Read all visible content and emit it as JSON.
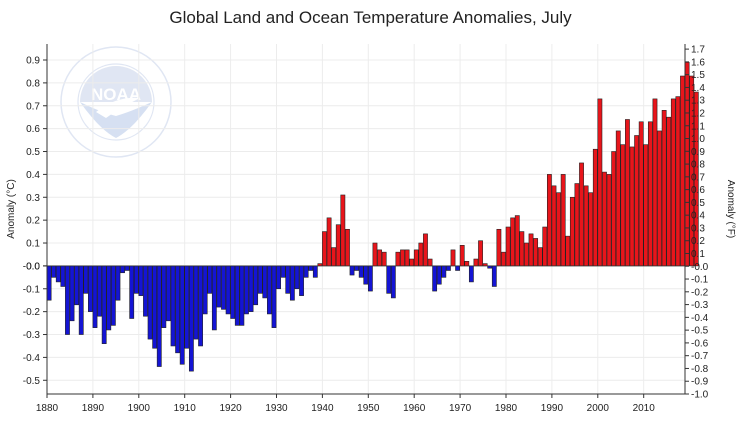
{
  "chart_data": {
    "type": "bar",
    "title": "Global Land and Ocean Temperature Anomalies, July",
    "ylabel_left": "Anomaly (°C)",
    "ylabel_right": "Anomaly (°F)",
    "xlim": [
      1880,
      2019
    ],
    "ylim_c": [
      -0.56,
      0.97
    ],
    "ylim_f": [
      -1.0,
      1.74
    ],
    "x_ticks": [
      1880,
      1890,
      1900,
      1910,
      1920,
      1930,
      1940,
      1950,
      1960,
      1970,
      1980,
      1990,
      2000,
      2010
    ],
    "y_ticks_c": [
      "0.9",
      "0.8",
      "0.7",
      "0.6",
      "0.5",
      "0.4",
      "0.3",
      "0.2",
      "0.1",
      "0.0",
      "-0.0",
      "-0.1",
      "-0.2",
      "-0.3",
      "-0.4",
      "-0.5"
    ],
    "y_ticks_c_values": [
      0.9,
      0.8,
      0.7,
      0.6,
      0.5,
      0.4,
      0.3,
      0.2,
      0.1,
      0.0,
      -0.0,
      -0.1,
      -0.2,
      -0.3,
      -0.4,
      -0.5
    ],
    "y_ticks_f": [
      "1.7",
      "1.6",
      "1.5",
      "1.4",
      "1.3",
      "1.2",
      "1.1",
      "1.0",
      "0.9",
      "0.8",
      "0.7",
      "0.6",
      "0.5",
      "0.4",
      "0.3",
      "0.2",
      "0.1",
      "-0.0",
      "-0.1",
      "-0.2",
      "-0.3",
      "-0.4",
      "-0.5",
      "-0.6",
      "-0.7",
      "-0.8",
      "-0.9",
      "-1.0"
    ],
    "y_ticks_f_values": [
      1.7,
      1.6,
      1.5,
      1.4,
      1.3,
      1.2,
      1.1,
      1.0,
      0.9,
      0.8,
      0.7,
      0.6,
      0.5,
      0.4,
      0.3,
      0.2,
      0.1,
      0.0,
      -0.1,
      -0.2,
      -0.3,
      -0.4,
      -0.5,
      -0.6,
      -0.7,
      -0.8,
      -0.9,
      -1.0
    ],
    "positive_color": "#e8151b",
    "negative_color": "#1414d4",
    "grid": true,
    "start_year": 1880,
    "values": [
      -0.15,
      -0.05,
      -0.07,
      -0.09,
      -0.3,
      -0.24,
      -0.17,
      -0.3,
      -0.12,
      -0.2,
      -0.27,
      -0.22,
      -0.34,
      -0.28,
      -0.26,
      -0.15,
      -0.03,
      -0.02,
      -0.23,
      -0.12,
      -0.13,
      -0.22,
      -0.32,
      -0.36,
      -0.44,
      -0.27,
      -0.24,
      -0.35,
      -0.38,
      -0.43,
      -0.36,
      -0.46,
      -0.32,
      -0.35,
      -0.21,
      -0.12,
      -0.28,
      -0.18,
      -0.19,
      -0.21,
      -0.23,
      -0.26,
      -0.26,
      -0.21,
      -0.2,
      -0.17,
      -0.12,
      -0.14,
      -0.21,
      -0.27,
      -0.1,
      -0.05,
      -0.12,
      -0.15,
      -0.1,
      -0.13,
      -0.05,
      -0.02,
      -0.05,
      0.01,
      0.15,
      0.21,
      0.08,
      0.18,
      0.31,
      0.16,
      -0.04,
      -0.02,
      -0.05,
      -0.08,
      -0.11,
      0.1,
      0.07,
      0.06,
      -0.12,
      -0.14,
      0.06,
      0.07,
      0.07,
      0.03,
      0.07,
      0.1,
      0.14,
      0.03,
      -0.11,
      -0.08,
      -0.05,
      -0.02,
      0.07,
      -0.02,
      0.09,
      0.02,
      -0.07,
      0.03,
      0.11,
      0.01,
      -0.01,
      -0.09,
      0.16,
      0.06,
      0.17,
      0.21,
      0.22,
      0.15,
      0.1,
      0.14,
      0.12,
      0.08,
      0.17,
      0.4,
      0.35,
      0.32,
      0.4,
      0.13,
      0.3,
      0.36,
      0.45,
      0.35,
      0.32,
      0.51,
      0.73,
      0.41,
      0.4,
      0.5,
      0.59,
      0.53,
      0.64,
      0.52,
      0.57,
      0.63,
      0.53,
      0.63,
      0.73,
      0.59,
      0.68,
      0.65,
      0.73,
      0.74,
      0.83,
      0.89,
      0.83,
      0.76
    ]
  }
}
